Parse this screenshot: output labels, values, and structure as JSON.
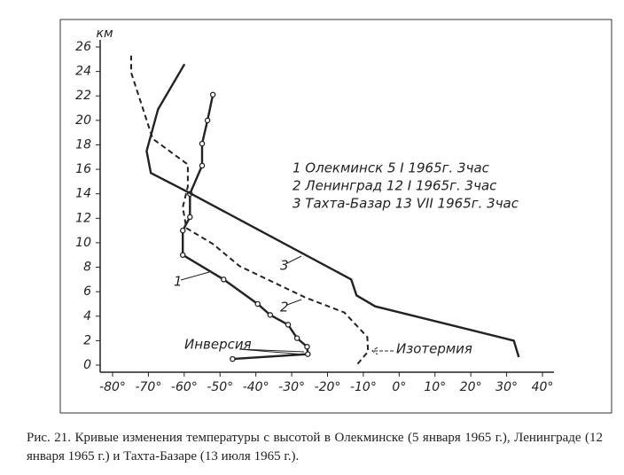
{
  "chart_data": {
    "type": "line",
    "title": "Рис. 21. Кривые изменения температуры с высотой в Олекминске (5 января 1965 г.), Ленинграде (12 января 1965 г.) и Тахта-Базаре (13 июля 1965 г.).",
    "ylabel": "км",
    "xlim": [
      -80,
      40
    ],
    "ylim": [
      0,
      26
    ],
    "xticks": [
      {
        "value": -80,
        "label": "-80°"
      },
      {
        "value": -70,
        "label": "-70°"
      },
      {
        "value": -60,
        "label": "-60°"
      },
      {
        "value": -50,
        "label": "-50°"
      },
      {
        "value": -40,
        "label": "-40°"
      },
      {
        "value": -30,
        "label": "-30°"
      },
      {
        "value": -20,
        "label": "-20°"
      },
      {
        "value": -10,
        "label": "-10°"
      },
      {
        "value": 0,
        "label": "0°"
      },
      {
        "value": 10,
        "label": "10°"
      },
      {
        "value": 20,
        "label": "20°"
      },
      {
        "value": 30,
        "label": "30°"
      },
      {
        "value": 40,
        "label": "40°"
      }
    ],
    "yticks": [
      0,
      2,
      4,
      6,
      8,
      10,
      12,
      14,
      16,
      18,
      20,
      22,
      24,
      26
    ],
    "series": [
      {
        "name": "1 Олекминск 5 I 1965г. 3час",
        "label": "1",
        "color": "#222",
        "dashed": false,
        "markers": true,
        "x": [
          -46.5,
          -25.5,
          -25.7,
          -28.5,
          -31,
          -36,
          -39.5,
          -49,
          -60.4,
          -60.4,
          -58.4,
          -58.4,
          -55,
          -55,
          -53.5,
          -52
        ],
        "values": [
          0.5,
          0.9,
          1.5,
          2.2,
          3.3,
          4.1,
          5,
          7,
          9,
          11,
          12.1,
          14,
          16.3,
          18.1,
          20,
          22.1
        ]
      },
      {
        "name": "2 Ленинград 12 I 1965г. 3час",
        "label": "2",
        "color": "#222",
        "dashed": true,
        "markers": false,
        "x": [
          -11.6,
          -8.7,
          -8.9,
          -15.3,
          -26,
          -34.6,
          -44.6,
          -52,
          -59.4,
          -60.4,
          -59,
          -59,
          -68.8,
          -74.8,
          -74.8
        ],
        "values": [
          0.1,
          1.1,
          2.3,
          4.3,
          5.5,
          6.7,
          8.1,
          9.9,
          11.2,
          12.9,
          14.6,
          16.4,
          18.5,
          23.9,
          25.3
        ]
      },
      {
        "name": "3 Тахта-Базар 13 VII 1965г. 3час",
        "label": "3",
        "color": "#222",
        "dashed": false,
        "markers": false,
        "x": [
          33.4,
          32,
          -6.7,
          -11.9,
          -13.4,
          -58.7,
          -69.3,
          -70.5,
          -67.3,
          -59.9
        ],
        "values": [
          0.65,
          2,
          4.8,
          5.7,
          7,
          14.1,
          15.7,
          17.5,
          20.9,
          24.6
        ]
      }
    ],
    "annotations": [
      "Инверсия",
      "Изотермия"
    ]
  }
}
